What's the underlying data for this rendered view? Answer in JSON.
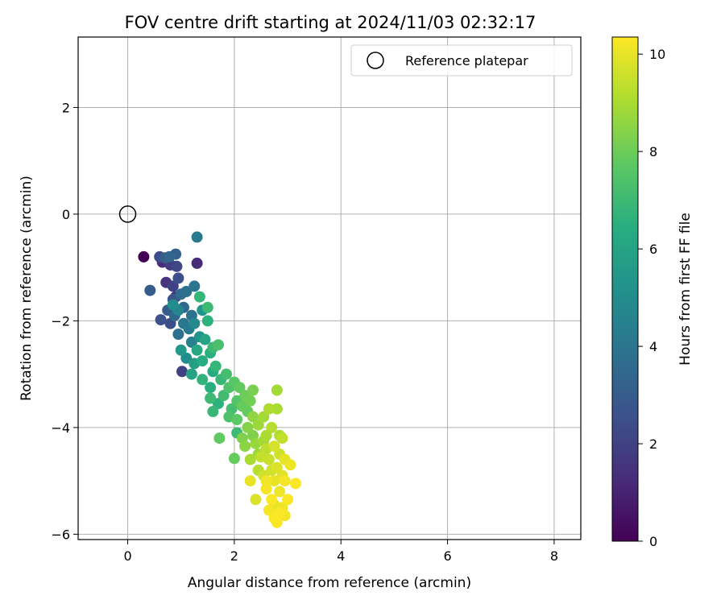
{
  "chart_data": {
    "type": "scatter",
    "title": "FOV centre drift starting at 2024/11/03 02:32:17",
    "xlabel": "Angular distance from reference (arcmin)",
    "ylabel": "Rotation from reference (arcmin)",
    "xlim": [
      -0.93,
      8.5
    ],
    "ylim": [
      -6.1,
      3.32
    ],
    "xticks": [
      0,
      2,
      4,
      6,
      8
    ],
    "xtick_labels": [
      "0",
      "2",
      "4",
      "6",
      "8"
    ],
    "yticks": [
      -6,
      -4,
      -2,
      0,
      2
    ],
    "ytick_labels": [
      "−6",
      "−4",
      "−2",
      "0",
      "2"
    ],
    "grid": true,
    "legend": {
      "position": "upper right",
      "entries": [
        "Reference platepar"
      ]
    },
    "reference_point": {
      "x": 0,
      "y": 0,
      "label": "Reference platepar",
      "marker": "open-circle"
    },
    "colorbar": {
      "label": "Hours from first FF file",
      "colormap": "viridis",
      "range": [
        0,
        10.35
      ],
      "ticks": [
        0,
        2,
        4,
        6,
        8,
        10
      ],
      "tick_labels": [
        "0",
        "2",
        "4",
        "6",
        "8",
        "10"
      ]
    },
    "series": [
      {
        "color_variable": "hours",
        "points": [
          [
            0.3,
            -0.8,
            0.0
          ],
          [
            0.65,
            -0.9,
            1.3
          ],
          [
            0.72,
            -1.28,
            1.5
          ],
          [
            0.8,
            -0.95,
            1.8
          ],
          [
            0.85,
            -1.35,
            2.0
          ],
          [
            0.92,
            -0.98,
            2.2
          ],
          [
            0.6,
            -0.8,
            2.4
          ],
          [
            0.95,
            -1.2,
            2.5
          ],
          [
            0.9,
            -1.55,
            1.7
          ],
          [
            1.3,
            -0.92,
            1.2
          ],
          [
            0.42,
            -1.43,
            3.0
          ],
          [
            0.62,
            -1.98,
            2.6
          ],
          [
            0.75,
            -1.8,
            3.0
          ],
          [
            0.8,
            -2.05,
            2.5
          ],
          [
            0.85,
            -1.6,
            2.7
          ],
          [
            0.9,
            -0.75,
            3.2
          ],
          [
            0.7,
            -0.82,
            3.0
          ],
          [
            0.78,
            -0.8,
            3.4
          ],
          [
            0.88,
            -1.9,
            3.4
          ],
          [
            1.0,
            -1.5,
            3.6
          ],
          [
            1.05,
            -1.75,
            3.5
          ],
          [
            1.1,
            -1.45,
            3.8
          ],
          [
            1.2,
            -1.9,
            3.9
          ],
          [
            1.25,
            -1.35,
            4.0
          ],
          [
            1.3,
            -0.43,
            4.2
          ],
          [
            1.02,
            -2.95,
            2.0
          ],
          [
            0.95,
            -2.25,
            3.7
          ],
          [
            1.05,
            -2.05,
            4.1
          ],
          [
            1.15,
            -2.15,
            4.2
          ],
          [
            1.2,
            -2.4,
            4.5
          ],
          [
            1.0,
            -2.55,
            5.5
          ],
          [
            0.85,
            -1.7,
            5.0
          ],
          [
            0.95,
            -1.8,
            4.7
          ],
          [
            1.1,
            -2.7,
            5.0
          ],
          [
            1.25,
            -2.05,
            4.8
          ],
          [
            1.35,
            -2.3,
            5.2
          ],
          [
            1.4,
            -1.8,
            5.3
          ],
          [
            1.25,
            -2.8,
            5.8
          ],
          [
            1.2,
            -3.0,
            6.0
          ],
          [
            1.3,
            -2.55,
            6.2
          ],
          [
            1.4,
            -2.75,
            6.4
          ],
          [
            1.45,
            -2.35,
            6.0
          ],
          [
            1.5,
            -2.0,
            6.6
          ],
          [
            1.35,
            -1.55,
            6.8
          ],
          [
            1.5,
            -1.75,
            7.0
          ],
          [
            1.55,
            -2.6,
            6.5
          ],
          [
            1.6,
            -2.95,
            6.3
          ],
          [
            1.4,
            -3.1,
            6.7
          ],
          [
            1.55,
            -3.25,
            6.5
          ],
          [
            1.6,
            -2.5,
            7.0
          ],
          [
            1.7,
            -2.45,
            7.3
          ],
          [
            1.65,
            -2.85,
            6.8
          ],
          [
            1.75,
            -3.1,
            6.9
          ],
          [
            1.8,
            -3.4,
            7.1
          ],
          [
            1.7,
            -3.55,
            6.6
          ],
          [
            1.55,
            -3.45,
            7.0
          ],
          [
            1.6,
            -3.7,
            6.9
          ],
          [
            1.85,
            -3.0,
            7.2
          ],
          [
            1.9,
            -3.25,
            7.4
          ],
          [
            2.0,
            -3.15,
            7.6
          ],
          [
            2.05,
            -3.5,
            7.5
          ],
          [
            1.95,
            -3.65,
            7.2
          ],
          [
            1.9,
            -3.8,
            7.4
          ],
          [
            2.05,
            -3.85,
            7.7
          ],
          [
            2.1,
            -3.25,
            7.8
          ],
          [
            2.15,
            -3.6,
            7.9
          ],
          [
            2.2,
            -3.4,
            8.0
          ],
          [
            2.25,
            -3.7,
            7.9
          ],
          [
            2.3,
            -3.5,
            8.1
          ],
          [
            2.35,
            -3.3,
            8.2
          ],
          [
            1.72,
            -4.2,
            7.8
          ],
          [
            2.0,
            -4.58,
            7.9
          ],
          [
            2.05,
            -4.1,
            7.0
          ],
          [
            2.15,
            -4.2,
            8.3
          ],
          [
            2.25,
            -4.0,
            8.4
          ],
          [
            2.35,
            -3.8,
            8.6
          ],
          [
            2.4,
            -4.3,
            8.7
          ],
          [
            2.45,
            -3.95,
            8.8
          ],
          [
            2.55,
            -3.8,
            8.9
          ],
          [
            2.6,
            -4.15,
            9.0
          ],
          [
            2.65,
            -3.65,
            9.1
          ],
          [
            2.8,
            -3.3,
            8.9
          ],
          [
            2.8,
            -3.65,
            9.0
          ],
          [
            2.7,
            -4.0,
            9.2
          ],
          [
            2.85,
            -4.15,
            9.1
          ],
          [
            2.6,
            -4.4,
            9.3
          ],
          [
            2.5,
            -4.55,
            9.4
          ],
          [
            2.45,
            -4.8,
            9.2
          ],
          [
            2.55,
            -4.9,
            9.6
          ],
          [
            2.65,
            -4.6,
            9.5
          ],
          [
            2.75,
            -4.35,
            9.7
          ],
          [
            2.85,
            -4.5,
            9.6
          ],
          [
            2.8,
            -4.75,
            9.8
          ],
          [
            2.9,
            -4.9,
            9.9
          ],
          [
            2.95,
            -4.6,
            10.0
          ],
          [
            3.05,
            -4.7,
            10.1
          ],
          [
            2.75,
            -5.0,
            10.0
          ],
          [
            2.6,
            -5.15,
            10.2
          ],
          [
            2.7,
            -5.35,
            10.3
          ],
          [
            2.85,
            -5.2,
            10.1
          ],
          [
            2.95,
            -5.0,
            10.2
          ],
          [
            3.15,
            -5.05,
            10.3
          ],
          [
            2.65,
            -5.55,
            10.2
          ],
          [
            2.75,
            -5.7,
            10.3
          ],
          [
            2.8,
            -5.78,
            10.35
          ],
          [
            2.9,
            -5.5,
            10.1
          ],
          [
            2.95,
            -5.65,
            10.2
          ],
          [
            3.0,
            -5.35,
            10.3
          ],
          [
            2.4,
            -5.35,
            9.8
          ],
          [
            2.3,
            -5.0,
            10.0
          ],
          [
            2.2,
            -4.35,
            8.5
          ],
          [
            2.35,
            -4.15,
            8.3
          ],
          [
            2.45,
            -4.5,
            8.8
          ],
          [
            2.55,
            -4.25,
            8.9
          ],
          [
            2.3,
            -4.6,
            9.0
          ],
          [
            2.7,
            -4.8,
            9.6
          ],
          [
            2.75,
            -5.45,
            10.0
          ],
          [
            2.85,
            -5.6,
            10.3
          ],
          [
            2.6,
            -5.0,
            10.1
          ],
          [
            2.9,
            -4.2,
            9.4
          ]
        ]
      }
    ]
  }
}
